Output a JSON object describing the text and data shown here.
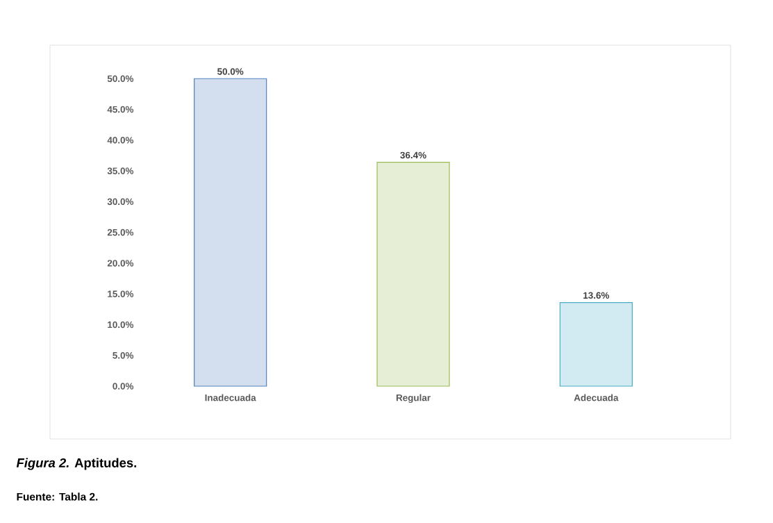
{
  "chart_data": {
    "type": "bar",
    "categories": [
      "Inadecuada",
      "Regular",
      "Adecuada"
    ],
    "values": [
      50.0,
      36.4,
      13.6
    ],
    "colors": [
      "#4f81bd",
      "#9bbb59",
      "#4bacc6"
    ],
    "value_labels": [
      "50.0%",
      "36.4%",
      "13.6%"
    ],
    "ylim": [
      0,
      55
    ],
    "yticks": [
      {
        "value": 0,
        "label": "0.0%"
      },
      {
        "value": 5,
        "label": "5.0%"
      },
      {
        "value": 10,
        "label": "10.0%"
      },
      {
        "value": 15,
        "label": "15.0%"
      },
      {
        "value": 20,
        "label": "20.0%"
      },
      {
        "value": 25,
        "label": "25.0%"
      },
      {
        "value": 30,
        "label": "30.0%"
      },
      {
        "value": 35,
        "label": "35.0%"
      },
      {
        "value": 40,
        "label": "40.0%"
      },
      {
        "value": 45,
        "label": "45.0%"
      },
      {
        "value": 50,
        "label": "50.0%"
      }
    ],
    "annotations": [
      "*Figura 2.* Aptitudes.",
      "Fuente: Tabla 2."
    ]
  }
}
